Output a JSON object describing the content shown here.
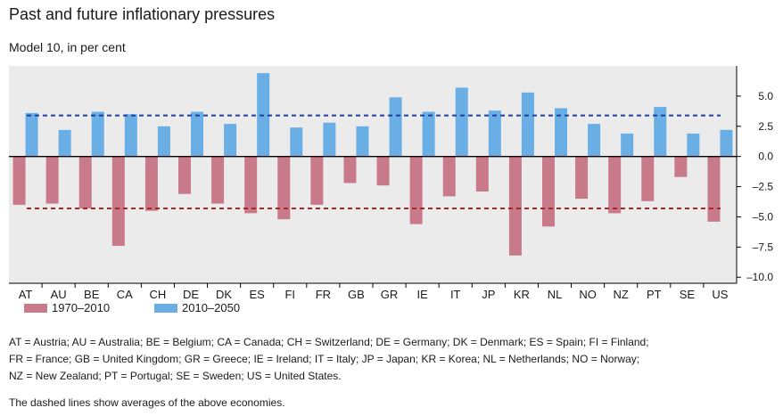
{
  "title": "Past and future inflationary pressures",
  "subtitle": "Model 10, in per cent",
  "chart_data": {
    "type": "bar",
    "categories": [
      "AT",
      "AU",
      "BE",
      "CA",
      "CH",
      "DE",
      "DK",
      "ES",
      "FI",
      "FR",
      "GB",
      "GR",
      "IE",
      "IT",
      "JP",
      "KR",
      "NL",
      "NO",
      "NZ",
      "PT",
      "SE",
      "US"
    ],
    "series": [
      {
        "name": "1970–2010",
        "color": "#c97a8a",
        "values": [
          -4.0,
          -3.9,
          -4.3,
          -7.4,
          -4.5,
          -3.1,
          -3.9,
          -4.7,
          -5.2,
          -4.0,
          -2.2,
          -2.4,
          -5.6,
          -3.3,
          -2.9,
          -8.2,
          -5.8,
          -3.5,
          -4.7,
          -3.7,
          -1.7,
          -5.4
        ]
      },
      {
        "name": "2010–2050",
        "color": "#6aaee6",
        "values": [
          3.6,
          2.2,
          3.7,
          3.5,
          2.5,
          3.7,
          2.7,
          6.9,
          2.4,
          2.8,
          2.5,
          4.9,
          3.7,
          5.7,
          3.8,
          5.3,
          4.0,
          2.7,
          1.9,
          4.1,
          1.9,
          2.2
        ]
      }
    ],
    "averages": [
      {
        "series": "2010–2050",
        "value": 3.4,
        "color": "#1f3fa0"
      },
      {
        "series": "1970–2010",
        "value": -4.3,
        "color": "#a82828"
      }
    ],
    "yticks": [
      "5.0",
      "2.5",
      "0.0",
      "–2.5",
      "–5.0",
      "–7.5",
      "–10.0"
    ],
    "ytick_values": [
      5.0,
      2.5,
      0.0,
      -2.5,
      -5.0,
      -7.5,
      -10.0
    ],
    "ylim": [
      -10.5,
      7.5
    ],
    "legend_placement": "bottom-left",
    "grid": false
  },
  "notes": {
    "abbreviations_line1": "AT = Austria;  AU = Australia;  BE = Belgium;  CA = Canada;  CH = Switzerland;  DE = Germany;  DK = Denmark;  ES = Spain;  FI = Finland;",
    "abbreviations_line2": "FR = France;  GB = United  Kingdom;  GR = Greece;  IE = Ireland;  IT = Italy;  JP = Japan;  KR = Korea;  NL = Netherlands;  NO = Norway;",
    "abbreviations_line3": "NZ = New Zealand; PT = Portugal; SE = Sweden; US = United States.",
    "dashed_note": "The dashed lines show averages of the above economies."
  }
}
